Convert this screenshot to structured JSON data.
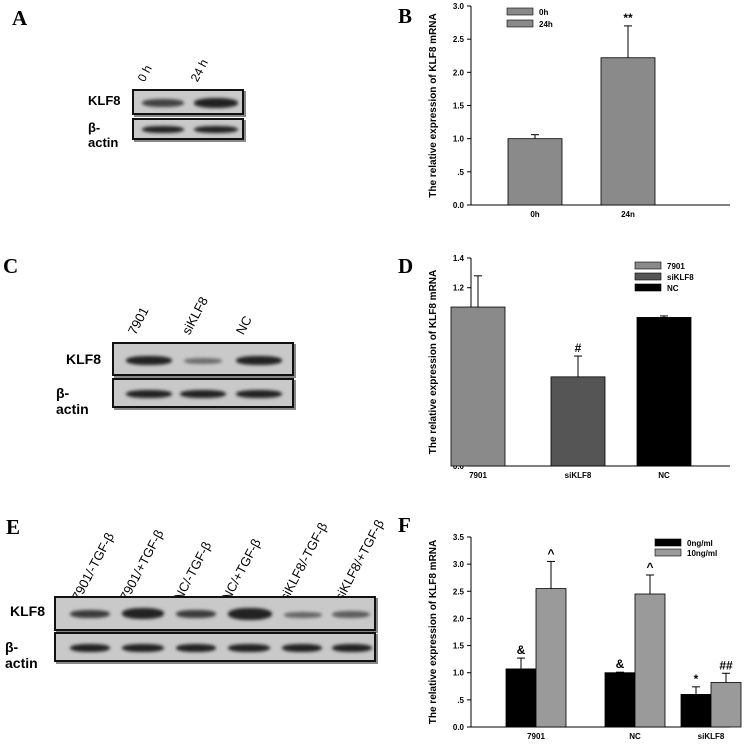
{
  "panels": {
    "A": {
      "letter": "A",
      "lanes": [
        "0 h",
        "24 h"
      ],
      "rows": [
        "KLF8",
        "β-actin"
      ]
    },
    "B": {
      "letter": "B"
    },
    "C": {
      "letter": "C",
      "lanes": [
        "7901",
        "siKLF8",
        "NC"
      ],
      "rows": [
        "KLF8",
        "β-actin"
      ]
    },
    "D": {
      "letter": "D"
    },
    "E": {
      "letter": "E",
      "lanes": [
        "7901/-TGF-β",
        "7901/+TGF-β",
        "NC/-TGF-β",
        "NC/+TGF-β",
        "siKLF8/-TGF-β",
        "siKLF8/+TGF-β"
      ],
      "rows": [
        "KLF8",
        "β-actin"
      ]
    },
    "F": {
      "letter": "F"
    }
  },
  "chart_data": [
    {
      "id": "B",
      "type": "bar",
      "categories": [
        "0h",
        "24n"
      ],
      "legend": [
        "0h",
        "24h"
      ],
      "legend_position": "top-left",
      "series": [
        {
          "values": [
            1.0,
            2.22
          ],
          "errors": [
            0.06,
            0.48
          ]
        }
      ],
      "bar_colors": [
        "#8a8a8a",
        "#8a8a8a"
      ],
      "ylabel": "The relative expression of KLF8 mRNA",
      "ylim": [
        0,
        3.0
      ],
      "yticks": [
        "0.0",
        ".5",
        "1.0",
        "1.5",
        "2.0",
        "2.5",
        "3.0"
      ],
      "annotations": [
        "",
        "**"
      ],
      "grid": false
    },
    {
      "id": "D",
      "type": "bar",
      "categories": [
        "7901",
        "siKLF8",
        "NC"
      ],
      "legend": [
        "7901",
        "siKLF8",
        "NC"
      ],
      "legend_position": "top-right",
      "series": [
        {
          "values": [
            1.07,
            0.6,
            1.0
          ],
          "errors": [
            0.21,
            0.14,
            0.01
          ]
        }
      ],
      "bar_colors": [
        "#8a8a8a",
        "#555555",
        "#000000"
      ],
      "ylabel": "The relative expression of KLF8 mRNA",
      "ylim": [
        0,
        1.4
      ],
      "yticks": [
        "0.0",
        ".2",
        ".4",
        ".6",
        ".8",
        "1.0",
        "1.2",
        "1.4"
      ],
      "annotations": [
        "",
        "#",
        ""
      ],
      "grid": false
    },
    {
      "id": "F",
      "type": "bar",
      "categories": [
        "7901",
        "NC",
        "siKLF8"
      ],
      "legend": [
        "0ng/ml",
        "10ng/ml"
      ],
      "legend_position": "top-right",
      "series": [
        {
          "name": "0ng/ml",
          "values": [
            1.07,
            1.0,
            0.6
          ],
          "errors": [
            0.2,
            0.01,
            0.14
          ],
          "annotations": [
            "&",
            "&",
            "*"
          ]
        },
        {
          "name": "10ng/ml",
          "values": [
            2.55,
            2.45,
            0.82
          ],
          "errors": [
            0.5,
            0.35,
            0.17
          ],
          "annotations": [
            "^",
            "^",
            "##"
          ]
        }
      ],
      "bar_colors": [
        "#000000",
        "#9a9a9a"
      ],
      "ylabel": "The relative expression of KLF8 mRNA",
      "ylim": [
        0,
        3.5
      ],
      "yticks": [
        "0.0",
        ".5",
        "1.0",
        "1.5",
        "2.0",
        "2.5",
        "3.0",
        "3.5"
      ],
      "grid": false
    }
  ]
}
